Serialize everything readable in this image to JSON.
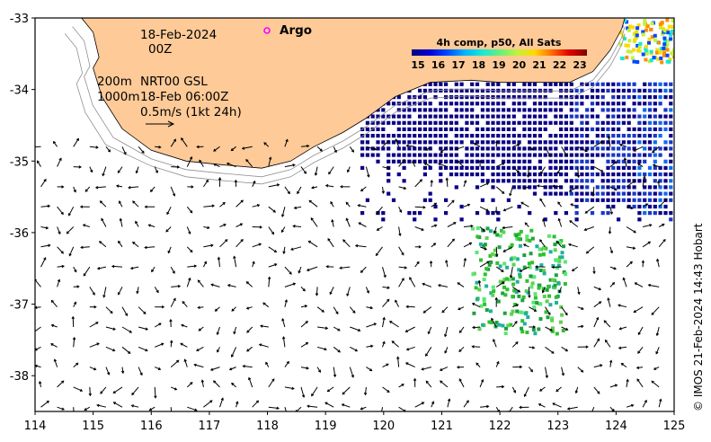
{
  "map": {
    "lon_range": [
      114,
      125
    ],
    "lat_range": [
      -38.5,
      -33
    ],
    "lon_ticks": [
      "114",
      "115",
      "116",
      "117",
      "118",
      "119",
      "120",
      "121",
      "122",
      "123",
      "124",
      "125"
    ],
    "lat_ticks": [
      "-33",
      "-34",
      "-35",
      "-36",
      "-37",
      "-38"
    ],
    "land_color": "#fdca98",
    "coastline": [
      [
        114.8,
        -33.0
      ],
      [
        115.0,
        -33.2
      ],
      [
        115.1,
        -33.55
      ],
      [
        115.0,
        -33.7
      ],
      [
        115.15,
        -34.1
      ],
      [
        115.5,
        -34.55
      ],
      [
        116.0,
        -34.85
      ],
      [
        116.6,
        -35.0
      ],
      [
        117.2,
        -35.05
      ],
      [
        117.9,
        -35.1
      ],
      [
        118.4,
        -35.0
      ],
      [
        118.8,
        -34.8
      ],
      [
        119.3,
        -34.6
      ],
      [
        119.7,
        -34.4
      ],
      [
        120.2,
        -34.1
      ],
      [
        120.8,
        -33.9
      ],
      [
        121.5,
        -33.87
      ],
      [
        122.0,
        -33.9
      ],
      [
        122.5,
        -33.9
      ],
      [
        123.2,
        -33.9
      ],
      [
        123.6,
        -33.75
      ],
      [
        123.9,
        -33.45
      ],
      [
        124.1,
        -33.15
      ],
      [
        124.15,
        -33.0
      ]
    ]
  },
  "annotations": {
    "date": "18-Feb-2024",
    "time": "00Z",
    "contour_200": "200m",
    "contour_1000": "1000m",
    "product": "NRT00 GSL",
    "valid": "18-Feb 06:00Z",
    "scale": "0.5m/s (1kt 24h)",
    "argo_label": "Argo"
  },
  "colorbar": {
    "title": "4h comp, p50, All Sats",
    "ticks": [
      "15",
      "16",
      "17",
      "18",
      "19",
      "20",
      "21",
      "22",
      "23"
    ],
    "colors": [
      "#08007e",
      "#0000d6",
      "#0048ff",
      "#00b0ff",
      "#16e8d8",
      "#64f07c",
      "#c2f23a",
      "#ffd900",
      "#ff6a00",
      "#e00000",
      "#7e0000"
    ]
  },
  "credit": "© IMOS 21-Feb-2024 14:43 Hobart"
}
